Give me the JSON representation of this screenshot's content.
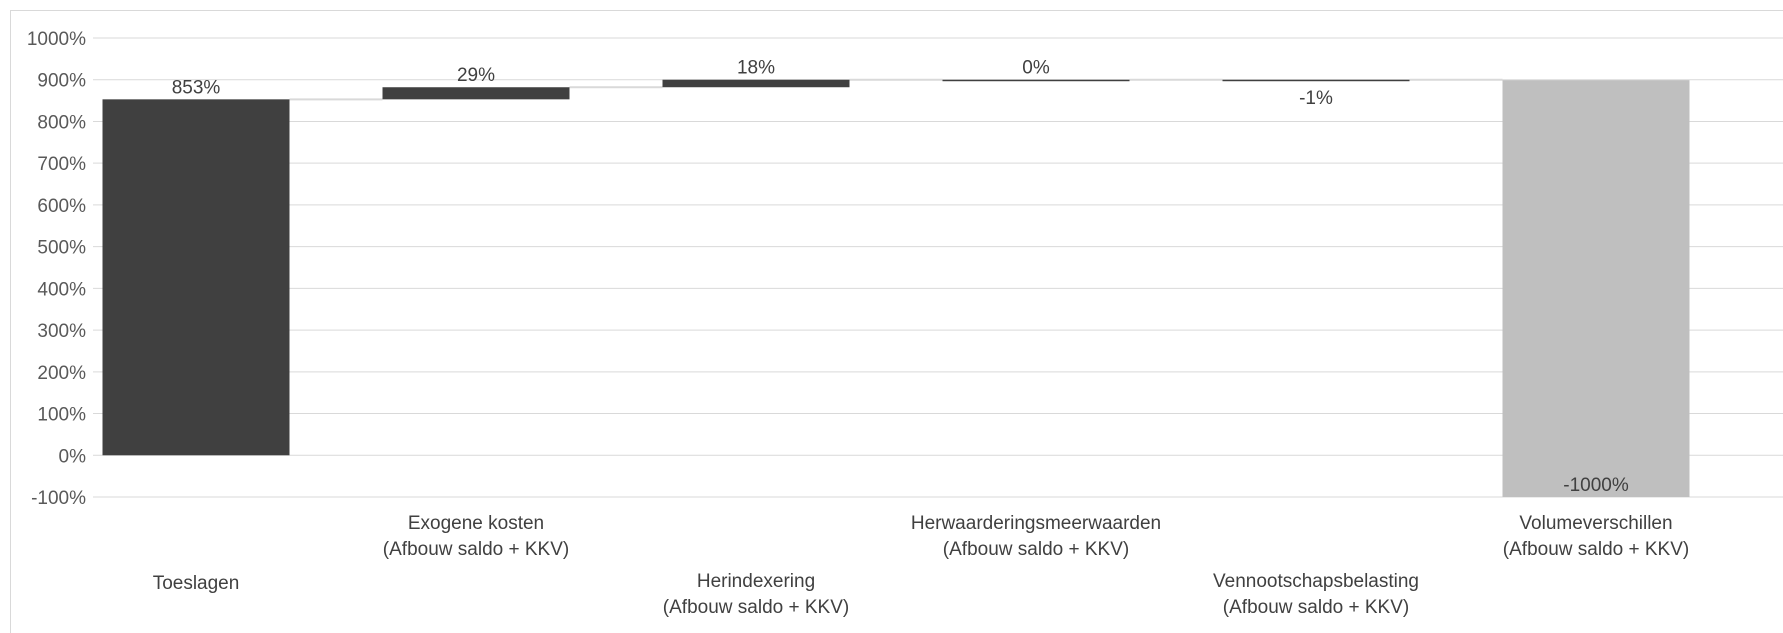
{
  "chart_data": {
    "type": "bar",
    "subtype": "waterfall",
    "categories": [
      [
        "Toeslagen"
      ],
      [
        "Exogene kosten",
        "(Afbouw saldo + KKV)"
      ],
      [
        "Herindexering",
        "(Afbouw saldo + KKV)"
      ],
      [
        "Herwaarderingsmeerwaarden",
        "(Afbouw saldo + KKV)"
      ],
      [
        "Vennootschapsbelasting",
        "(Afbouw saldo + KKV)"
      ],
      [
        "Volumeverschillen",
        "(Afbouw saldo + KKV)"
      ]
    ],
    "values": [
      853,
      29,
      18,
      0,
      -1,
      -1000
    ],
    "bar_ranges": [
      [
        0,
        853
      ],
      [
        853,
        882
      ],
      [
        882,
        900
      ],
      [
        899,
        900
      ],
      [
        899,
        900
      ],
      [
        -100,
        899
      ]
    ],
    "data_labels": [
      "853%",
      "29%",
      "18%",
      "0%",
      "-1%",
      "-1000%"
    ],
    "ylim": [
      -100,
      1000
    ],
    "yticks": [
      -100,
      0,
      100,
      200,
      300,
      400,
      500,
      600,
      700,
      800,
      900,
      1000
    ],
    "ytick_labels": [
      "-100%",
      "0%",
      "100%",
      "200%",
      "300%",
      "400%",
      "500%",
      "600%",
      "700%",
      "800%",
      "900%",
      "1000%"
    ],
    "grid": true,
    "colors": {
      "dark": "#404040",
      "light": "#bfbfbf",
      "grid": "#d9d9d9",
      "connector": "#d9d9d9"
    },
    "bar_colors": [
      "#404040",
      "#404040",
      "#404040",
      "#404040",
      "#404040",
      "#bfbfbf"
    ]
  }
}
